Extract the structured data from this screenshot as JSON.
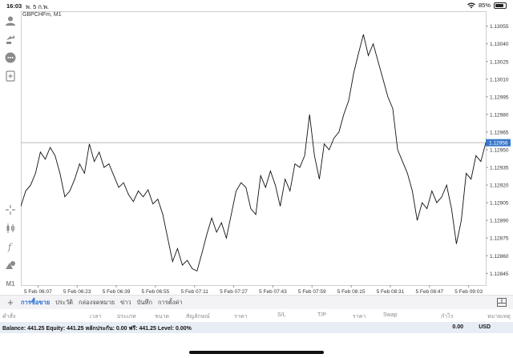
{
  "status_bar": {
    "time": "16:03",
    "date": "พ. 5 ก.พ.",
    "battery": "85%",
    "battery_level": 0.85
  },
  "chart": {
    "symbol": "GBPCHFm, M1",
    "current_price": "1.12956"
  },
  "chart_data": {
    "type": "line",
    "symbol": "GBPCHFm",
    "timeframe": "M1",
    "x_labels": [
      "5 Feb 06:07",
      "5 Feb 06:23",
      "5 Feb 06:39",
      "5 Feb 06:55",
      "5 Feb 07:11",
      "5 Feb 07:27",
      "5 Feb 07:43",
      "5 Feb 07:59",
      "5 Feb 08:15",
      "5 Feb 08:31",
      "5 Feb 08:47",
      "5 Feb 09:03"
    ],
    "y_ticks": [
      "1.13055",
      "1.13040",
      "1.13025",
      "1.13010",
      "1.12995",
      "1.12980",
      "1.12965",
      "1.12950",
      "1.12935",
      "1.12920",
      "1.12905",
      "1.12890",
      "1.12875",
      "1.12860",
      "1.12845"
    ],
    "ylim": [
      1.12835,
      1.13065
    ],
    "xlim_minutes": [
      5.2,
      180
    ],
    "current_price": 1.12956,
    "points": [
      [
        0,
        1.12902
      ],
      [
        2,
        1.12915
      ],
      [
        4,
        1.1292
      ],
      [
        6,
        1.1293
      ],
      [
        8,
        1.12948
      ],
      [
        10,
        1.12942
      ],
      [
        12,
        1.12952
      ],
      [
        14,
        1.12945
      ],
      [
        16,
        1.1293
      ],
      [
        18,
        1.1291
      ],
      [
        20,
        1.12915
      ],
      [
        22,
        1.12925
      ],
      [
        24,
        1.12938
      ],
      [
        26,
        1.1293
      ],
      [
        28,
        1.12955
      ],
      [
        30,
        1.1294
      ],
      [
        32,
        1.12948
      ],
      [
        34,
        1.12935
      ],
      [
        36,
        1.12938
      ],
      [
        38,
        1.12928
      ],
      [
        40,
        1.12918
      ],
      [
        42,
        1.12922
      ],
      [
        44,
        1.12912
      ],
      [
        46,
        1.12906
      ],
      [
        48,
        1.12915
      ],
      [
        50,
        1.1291
      ],
      [
        52,
        1.12916
      ],
      [
        54,
        1.12904
      ],
      [
        56,
        1.12908
      ],
      [
        58,
        1.12895
      ],
      [
        60,
        1.12875
      ],
      [
        62,
        1.12855
      ],
      [
        64,
        1.12866
      ],
      [
        66,
        1.12852
      ],
      [
        68,
        1.12856
      ],
      [
        70,
        1.12849
      ],
      [
        72,
        1.12847
      ],
      [
        74,
        1.12862
      ],
      [
        76,
        1.12878
      ],
      [
        78,
        1.12892
      ],
      [
        80,
        1.1288
      ],
      [
        82,
        1.12888
      ],
      [
        84,
        1.12875
      ],
      [
        86,
        1.12895
      ],
      [
        88,
        1.12915
      ],
      [
        90,
        1.12922
      ],
      [
        92,
        1.12918
      ],
      [
        94,
        1.129
      ],
      [
        96,
        1.12895
      ],
      [
        98,
        1.12928
      ],
      [
        100,
        1.12918
      ],
      [
        102,
        1.12932
      ],
      [
        104,
        1.1292
      ],
      [
        106,
        1.12902
      ],
      [
        108,
        1.12925
      ],
      [
        110,
        1.12915
      ],
      [
        112,
        1.12938
      ],
      [
        114,
        1.12935
      ],
      [
        116,
        1.12945
      ],
      [
        118,
        1.1298
      ],
      [
        120,
        1.12945
      ],
      [
        122,
        1.12925
      ],
      [
        124,
        1.12955
      ],
      [
        126,
        1.1295
      ],
      [
        128,
        1.1296
      ],
      [
        130,
        1.12965
      ],
      [
        132,
        1.1298
      ],
      [
        134,
        1.12992
      ],
      [
        136,
        1.13015
      ],
      [
        138,
        1.13032
      ],
      [
        140,
        1.13048
      ],
      [
        142,
        1.1303
      ],
      [
        144,
        1.1304
      ],
      [
        146,
        1.13025
      ],
      [
        148,
        1.1301
      ],
      [
        150,
        1.12995
      ],
      [
        152,
        1.12985
      ],
      [
        154,
        1.1295
      ],
      [
        156,
        1.1294
      ],
      [
        158,
        1.1293
      ],
      [
        160,
        1.12915
      ],
      [
        162,
        1.1289
      ],
      [
        164,
        1.12905
      ],
      [
        166,
        1.129
      ],
      [
        168,
        1.12915
      ],
      [
        170,
        1.12905
      ],
      [
        172,
        1.1291
      ],
      [
        174,
        1.1292
      ],
      [
        176,
        1.129
      ],
      [
        178,
        1.1287
      ],
      [
        180,
        1.1289
      ],
      [
        182,
        1.1293
      ],
      [
        184,
        1.12925
      ],
      [
        186,
        1.12945
      ],
      [
        188,
        1.1294
      ],
      [
        190,
        1.12956
      ]
    ]
  },
  "left_toolbar": {
    "timeframe_label": "M1"
  },
  "tabs": [
    "การซื้อขาย",
    "ประวัติ",
    "กล่องจดหมาย",
    "ข่าว",
    "บันทึก",
    "การตั้งค่า"
  ],
  "table_headers": [
    "คำสั่ง",
    "เวลา",
    "ประเภท",
    "ขนาด",
    "สัญลักษณ์",
    "ราคา",
    "S/L",
    "T/P",
    "ราคา",
    "Swap",
    "กำไร",
    "หมายเหตุ"
  ],
  "balance": {
    "summary": "Balance: 441.25 Equity: 441.25 หลักประกัน: 0.00 ฟรี: 441.25 Level: 0.00%",
    "profit": "0.00",
    "currency": "USD"
  },
  "colors": {
    "line": "#111111",
    "current_price_bg": "#3a78c9",
    "active_tab": "#2a6fd6",
    "balance_bg": "#e8edf5"
  }
}
